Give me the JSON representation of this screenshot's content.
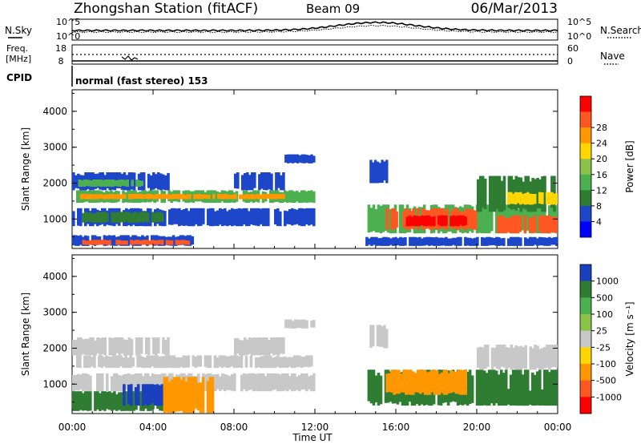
{
  "header": {
    "station": "Zhongshan Station (fitACF)",
    "beam": "Beam 09",
    "date": "06/Mar/2013"
  },
  "noise_panel": {
    "left_label": "N.Sky",
    "right_label": "N.Search",
    "left_ticks": [
      "10^5",
      "10^0"
    ],
    "right_ticks": [
      "10^5",
      "10^0"
    ]
  },
  "freq_panel": {
    "left_label_1": "Freq.",
    "left_label_2": "[MHz]",
    "right_label": "Nave",
    "left_ticks": [
      "18",
      "8"
    ],
    "right_ticks": [
      "60",
      "0"
    ]
  },
  "cpid": {
    "label": "CPID",
    "value": "normal (fast stereo) 153"
  },
  "chart_data": [
    {
      "type": "heatmap",
      "panel": "power",
      "ylabel": "Slant Range [km]",
      "xlabel": "Time UT",
      "x_ticks": [
        "00:00",
        "04:00",
        "08:00",
        "12:00",
        "16:00",
        "20:00",
        "00:00"
      ],
      "x_hours": [
        0,
        4,
        8,
        12,
        16,
        20,
        24
      ],
      "y_ticks": [
        1000,
        2000,
        3000,
        4000
      ],
      "ylim": [
        180,
        4600
      ],
      "colorbar": {
        "label": "Power [dB]",
        "tick_labels": [
          "4",
          "8",
          "12",
          "16",
          "20",
          "24",
          "28"
        ],
        "colors": [
          "#0000ff",
          "#1e46c8",
          "#2e7d32",
          "#4caf50",
          "#8bc34a",
          "#ffd600",
          "#ff9800",
          "#ff5722",
          "#ff0000"
        ]
      },
      "regions": [
        {
          "t0": 0.2,
          "t1": 12.0,
          "r0": 1450,
          "r1": 1800,
          "color": "#4caf50"
        },
        {
          "t0": 0.4,
          "t1": 10.5,
          "r0": 1550,
          "r1": 1700,
          "color": "#ff9800"
        },
        {
          "t0": 0.0,
          "t1": 4.8,
          "r0": 1800,
          "r1": 2300,
          "color": "#1e46c8"
        },
        {
          "t0": 0.3,
          "t1": 3.5,
          "r0": 1900,
          "r1": 2100,
          "color": "#4caf50"
        },
        {
          "t0": 0.0,
          "t1": 12.0,
          "r0": 800,
          "r1": 1300,
          "color": "#1e46c8"
        },
        {
          "t0": 0.5,
          "t1": 4.5,
          "r0": 900,
          "r1": 1200,
          "color": "#2e7d32"
        },
        {
          "t0": 8.0,
          "t1": 10.5,
          "r0": 1800,
          "r1": 2300,
          "color": "#1e46c8"
        },
        {
          "t0": 10.5,
          "t1": 12.0,
          "r0": 2550,
          "r1": 2800,
          "color": "#1e46c8"
        },
        {
          "t0": 0.0,
          "t1": 6.0,
          "r0": 250,
          "r1": 550,
          "color": "#1e46c8"
        },
        {
          "t0": 0.5,
          "t1": 5.8,
          "r0": 280,
          "r1": 420,
          "color": "#ff5722"
        },
        {
          "t0": 14.6,
          "t1": 24.0,
          "r0": 600,
          "r1": 1400,
          "color": "#4caf50"
        },
        {
          "t0": 15.5,
          "t1": 20.0,
          "r0": 700,
          "r1": 1300,
          "color": "#ff5722"
        },
        {
          "t0": 16.5,
          "t1": 19.5,
          "r0": 800,
          "r1": 1100,
          "color": "#ff0000"
        },
        {
          "t0": 20.0,
          "t1": 24.0,
          "r0": 1200,
          "r1": 2200,
          "color": "#2e7d32"
        },
        {
          "t0": 21.0,
          "t1": 24.0,
          "r0": 600,
          "r1": 1100,
          "color": "#ff5722"
        },
        {
          "t0": 21.5,
          "t1": 24.0,
          "r0": 1400,
          "r1": 1750,
          "color": "#ffd600"
        },
        {
          "t0": 14.5,
          "t1": 24.0,
          "r0": 250,
          "r1": 500,
          "color": "#1e46c8"
        },
        {
          "t0": 14.7,
          "t1": 15.6,
          "r0": 2000,
          "r1": 2650,
          "color": "#1e46c8"
        }
      ]
    },
    {
      "type": "heatmap",
      "panel": "velocity",
      "ylabel": "Slant Range [km]",
      "xlabel": "Time UT",
      "x_ticks": [
        "00:00",
        "04:00",
        "08:00",
        "12:00",
        "16:00",
        "20:00",
        "00:00"
      ],
      "x_hours": [
        0,
        4,
        8,
        12,
        16,
        20,
        24
      ],
      "y_ticks": [
        1000,
        2000,
        3000,
        4000
      ],
      "ylim": [
        180,
        4600
      ],
      "colorbar": {
        "label": "Velocity [m s⁻¹]",
        "tick_labels": [
          "1000",
          "500",
          "100",
          "25",
          "-25",
          "-100",
          "-500",
          "-1000"
        ],
        "colors": [
          "#1a3fbf",
          "#2e7d32",
          "#4caf50",
          "#8bc34a",
          "#c8c8c8",
          "#ffd600",
          "#ff9800",
          "#ff5722",
          "#ff0000"
        ]
      },
      "regions": [
        {
          "t0": 0.2,
          "t1": 12.0,
          "r0": 1450,
          "r1": 1800,
          "color": "#c8c8c8"
        },
        {
          "t0": 0.0,
          "t1": 4.8,
          "r0": 1800,
          "r1": 2300,
          "color": "#c8c8c8"
        },
        {
          "t0": 0.0,
          "t1": 12.0,
          "r0": 800,
          "r1": 1300,
          "color": "#c8c8c8"
        },
        {
          "t0": 8.0,
          "t1": 10.5,
          "r0": 1800,
          "r1": 2300,
          "color": "#c8c8c8"
        },
        {
          "t0": 0.0,
          "t1": 5.0,
          "r0": 250,
          "r1": 800,
          "color": "#2e7d32"
        },
        {
          "t0": 2.5,
          "t1": 4.5,
          "r0": 400,
          "r1": 1000,
          "color": "#1a3fbf"
        },
        {
          "t0": 4.5,
          "t1": 7.0,
          "r0": 200,
          "r1": 1200,
          "color": "#ff9800"
        },
        {
          "t0": 14.6,
          "t1": 24.0,
          "r0": 400,
          "r1": 1400,
          "color": "#2e7d32"
        },
        {
          "t0": 15.5,
          "t1": 19.5,
          "r0": 700,
          "r1": 1400,
          "color": "#ff9800"
        },
        {
          "t0": 20.0,
          "t1": 24.0,
          "r0": 1400,
          "r1": 2100,
          "color": "#c8c8c8"
        },
        {
          "t0": 21.5,
          "t1": 24.0,
          "r0": 400,
          "r1": 900,
          "color": "#2e7d32"
        },
        {
          "t0": 10.5,
          "t1": 12.0,
          "r0": 2550,
          "r1": 2800,
          "color": "#c8c8c8"
        },
        {
          "t0": 14.7,
          "t1": 15.6,
          "r0": 2000,
          "r1": 2650,
          "color": "#c8c8c8"
        }
      ]
    }
  ]
}
